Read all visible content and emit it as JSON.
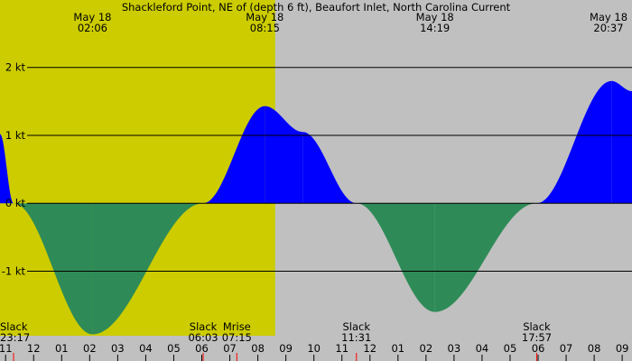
{
  "chart_data": {
    "type": "area",
    "title": "Shackleford Point, NE of (depth 6 ft), Beaufort Inlet, North Carolina Current",
    "unit": "kt",
    "ylim": [
      -1.95,
      2.7
    ],
    "xlim_hours": [
      10.8,
      33.35
    ],
    "daylight_hours": [
      6.05,
      20.617
    ],
    "y_ticks": [
      {
        "value": 2,
        "label": "2 kt"
      },
      {
        "value": 1,
        "label": "1 kt"
      },
      {
        "value": 0,
        "label": "0 kt"
      },
      {
        "value": -1,
        "label": "-1 kt"
      }
    ],
    "x_ticks": [
      {
        "hour": 11,
        "label": "11"
      },
      {
        "hour": 12,
        "label": "12"
      },
      {
        "hour": 13,
        "label": "01"
      },
      {
        "hour": 14,
        "label": "02"
      },
      {
        "hour": 15,
        "label": "03"
      },
      {
        "hour": 16,
        "label": "04"
      },
      {
        "hour": 17,
        "label": "05"
      },
      {
        "hour": 18,
        "label": "06"
      },
      {
        "hour": 19,
        "label": "07"
      },
      {
        "hour": 20,
        "label": "08"
      },
      {
        "hour": 21,
        "label": "09"
      },
      {
        "hour": 22,
        "label": "10"
      },
      {
        "hour": 23,
        "label": "11"
      },
      {
        "hour": 24,
        "label": "12"
      },
      {
        "hour": 25,
        "label": "01"
      },
      {
        "hour": 26,
        "label": "02"
      },
      {
        "hour": 27,
        "label": "03"
      },
      {
        "hour": 28,
        "label": "04"
      },
      {
        "hour": 29,
        "label": "05"
      },
      {
        "hour": 30,
        "label": "06"
      },
      {
        "hour": 31,
        "label": "07"
      },
      {
        "hour": 32,
        "label": "08"
      },
      {
        "hour": 33,
        "label": "09"
      }
    ],
    "peak_labels": [
      {
        "hour": 14.1,
        "date": "May 18",
        "time": "02:06"
      },
      {
        "hour": 20.25,
        "date": "May 18",
        "time": "08:15"
      },
      {
        "hour": 26.317,
        "date": "May 18",
        "time": "14:19"
      },
      {
        "hour": 32.617,
        "date": "May 18",
        "time": "20:37"
      }
    ],
    "event_labels": [
      {
        "hour": 11.283,
        "label": "Slack",
        "time": "23:17",
        "marker": true
      },
      {
        "hour": 18.05,
        "label": "Slack",
        "time": "06:03",
        "marker": true
      },
      {
        "hour": 19.25,
        "label": "Mrise",
        "time": "07:15",
        "marker": true
      },
      {
        "hour": 23.517,
        "label": "Slack",
        "time": "11:31",
        "marker": true
      },
      {
        "hour": 29.95,
        "label": "Slack",
        "time": "17:57",
        "marker": true
      }
    ],
    "series": [
      {
        "flood_color": "#0000ff",
        "ebb_color": "#2e8b57",
        "points": [
          [
            10.8,
            1.02
          ],
          [
            11.283,
            0
          ],
          [
            14.1,
            -1.93
          ],
          [
            18.05,
            0
          ],
          [
            20.25,
            1.43
          ],
          [
            21.6,
            1.05
          ],
          [
            23.517,
            0
          ],
          [
            26.317,
            -1.6
          ],
          [
            29.95,
            0
          ],
          [
            32.617,
            1.8
          ],
          [
            33.35,
            1.65
          ]
        ]
      }
    ],
    "colors": {
      "background": "#c0c0c0",
      "daylight": "#cccc00",
      "gridline": "#000000",
      "marker_red": "#ff0000",
      "marker_black": "#000000"
    }
  }
}
